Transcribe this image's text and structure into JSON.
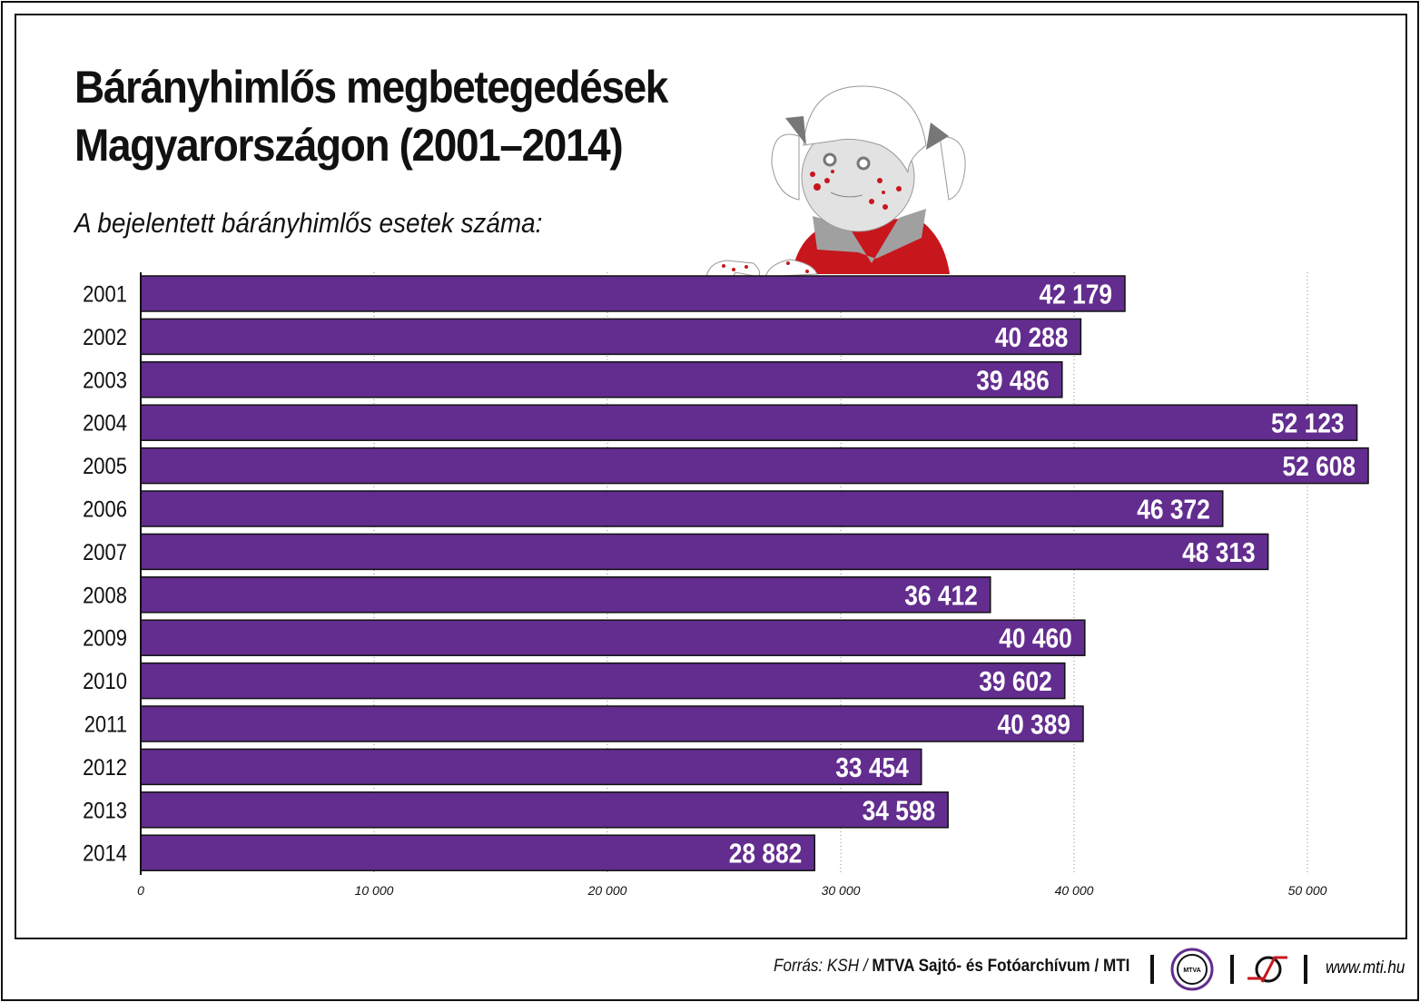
{
  "title_line1": "Bárányhimlős megbetegedések",
  "title_line2": "Magyarországon (2001–2014)",
  "subtitle": "A bejelentett bárányhimlős esetek száma:",
  "footer": {
    "source_prefix": "Forrás: KSH / ",
    "source_bold": "MTVA Sajtó- és Fotóarchívum / MTI",
    "logo_text": "MTVA",
    "url": "www.mti.hu"
  },
  "colors": {
    "bar": "#622d8e",
    "accent_red": "#c8161d"
  },
  "chart_data": {
    "type": "bar",
    "orientation": "horizontal",
    "categories": [
      "2001",
      "2002",
      "2003",
      "2004",
      "2005",
      "2006",
      "2007",
      "2008",
      "2009",
      "2010",
      "2011",
      "2012",
      "2013",
      "2014"
    ],
    "values": [
      42179,
      40288,
      39486,
      52123,
      52608,
      46372,
      48313,
      36412,
      40460,
      39602,
      40389,
      33454,
      34598,
      28882
    ],
    "value_labels": [
      "42 179",
      "40 288",
      "39 486",
      "52 123",
      "52 608",
      "46 372",
      "48 313",
      "36 412",
      "40 460",
      "39 602",
      "40 389",
      "33 454",
      "34 598",
      "28 882"
    ],
    "xlim": [
      0,
      52608
    ],
    "x_ticks": [
      0,
      10000,
      20000,
      30000,
      40000,
      50000
    ],
    "x_tick_labels": [
      "0",
      "10 000",
      "20 000",
      "30 000",
      "40 000",
      "50 000"
    ],
    "grid": "vertical dotted"
  }
}
